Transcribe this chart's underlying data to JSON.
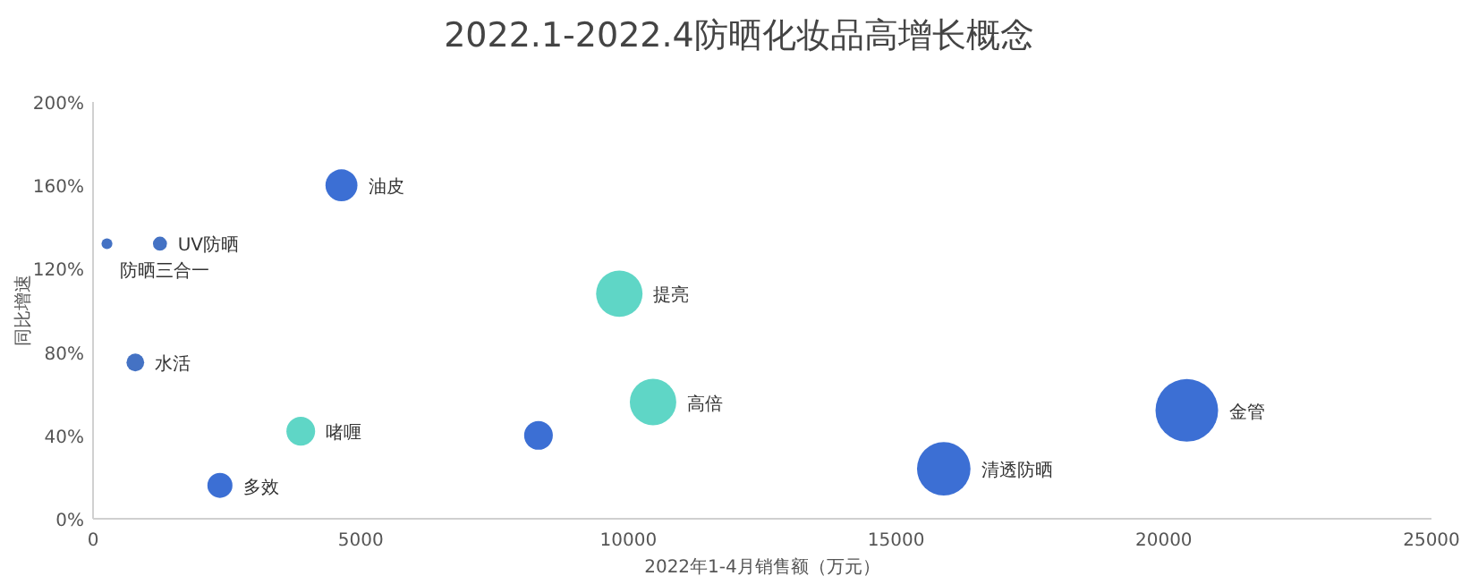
{
  "chart_data": {
    "type": "bubble",
    "title": "2022.1-2022.4防晒化妆品高增长概念",
    "xlabel": "2022年1-4月销售额（万元）",
    "ylabel": "同比增速",
    "x": [
      260,
      1250,
      790,
      4640,
      3880,
      2370,
      8320,
      9830,
      10460,
      15890,
      20430
    ],
    "values": [
      132,
      132,
      75,
      160,
      42,
      16,
      40,
      108,
      56,
      24,
      52
    ],
    "sizes": [
      0.03,
      0.05,
      0.08,
      0.26,
      0.21,
      0.16,
      0.21,
      0.55,
      0.55,
      0.73,
      1
    ],
    "colors": [
      "#4472c4",
      "#4472c4",
      "#4472c4",
      "#3c6fd4",
      "#5fd6c6",
      "#3c6fd4",
      "#3c6fd4",
      "#5fd6c6",
      "#5fd6c6",
      "#3c6fd4",
      "#3c6fd4"
    ],
    "xlim": [
      0,
      25000
    ],
    "xticks": [
      0,
      5000,
      10000,
      15000,
      20000,
      25000
    ],
    "ylim": [
      0,
      200
    ],
    "yticks": [
      {
        "value": 0,
        "label": "0%"
      },
      {
        "value": 40,
        "label": "40%"
      },
      {
        "value": 80,
        "label": "80%"
      },
      {
        "value": 120,
        "label": "120%"
      },
      {
        "value": 160,
        "label": "160%"
      },
      {
        "value": 200,
        "label": "200%"
      }
    ],
    "grid": false,
    "annotations": [
      {
        "text": "防晒三合一",
        "x": 260,
        "y": 132
      },
      {
        "text": "UV防晒",
        "x": 1250,
        "y": 132
      },
      {
        "text": "水活",
        "x": 790,
        "y": 75
      },
      {
        "text": "油皮",
        "x": 4640,
        "y": 160
      },
      {
        "text": "啫喱",
        "x": 3880,
        "y": 42
      },
      {
        "text": "多效",
        "x": 2370,
        "y": 16
      },
      {
        "text": "提亮",
        "x": 9830,
        "y": 108
      },
      {
        "text": "高倍",
        "x": 10460,
        "y": 56
      },
      {
        "text": "清透防晒",
        "x": 15890,
        "y": 24
      },
      {
        "text": "金管",
        "x": 20430,
        "y": 52
      }
    ]
  }
}
